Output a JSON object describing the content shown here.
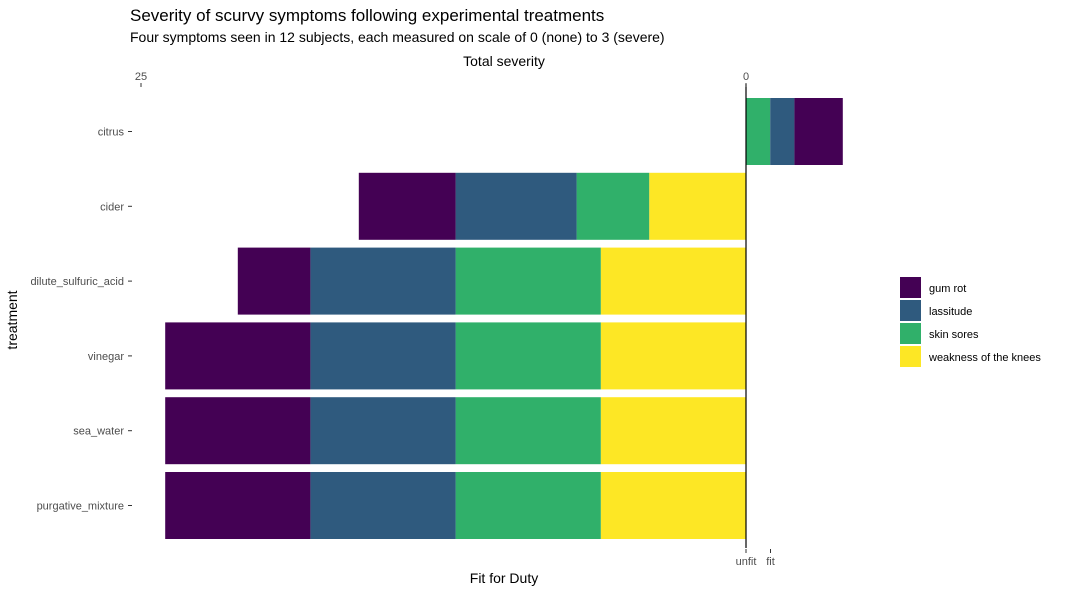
{
  "chart_data": {
    "type": "bar",
    "orientation": "horizontal-stacked",
    "title": "Severity of scurvy symptoms following experimental treatments",
    "subtitle": "Four symptoms seen in 12 subjects, each measured on scale of 0 (none) to 3 (severe)",
    "top_axis_title": "Total severity",
    "top_axis_ticks": [
      "25",
      "0"
    ],
    "xlabel": "Fit for Duty",
    "bottom_axis_ticks": [
      "unfit",
      "fit"
    ],
    "ylabel": "treatment",
    "categories": [
      "citrus",
      "cider",
      "dilute_sulfuric_acid",
      "vinegar",
      "sea_water",
      "purgative_mixture"
    ],
    "fit_for_duty": [
      1,
      0,
      0,
      0,
      0,
      0
    ],
    "series": [
      {
        "name": "gum rot",
        "color": "#440154",
        "values": [
          2,
          4,
          3,
          6,
          6,
          6
        ]
      },
      {
        "name": "lassitude",
        "color": "#2F5A7E",
        "values": [
          1,
          5,
          6,
          6,
          6,
          6
        ]
      },
      {
        "name": "skin sores",
        "color": "#30B06A",
        "values": [
          1,
          3,
          6,
          6,
          6,
          6
        ]
      },
      {
        "name": "weakness of the knees",
        "color": "#FDE725",
        "values": [
          0,
          4,
          6,
          6,
          6,
          6
        ]
      }
    ],
    "legend_position": "right",
    "grid": false
  }
}
